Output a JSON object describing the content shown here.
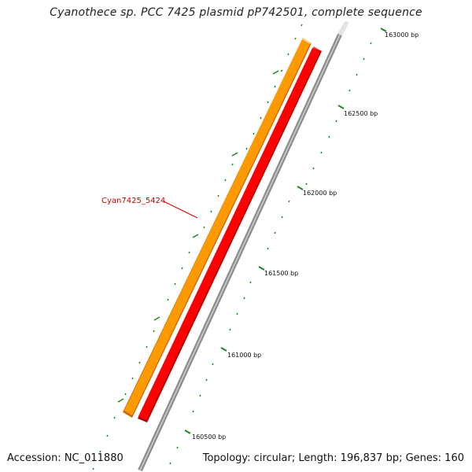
{
  "title": "Cyanothece sp. PCC 7425 plasmid pP742501, complete sequence",
  "footer": {
    "accession": "Accession: NC_011880",
    "summary": "Topology: circular; Length: 196,837 bp; Genes: 160"
  },
  "gene_label": "Cyan7425_5424",
  "ticks": [
    {
      "label": "160500 bp"
    },
    {
      "label": "161000 bp"
    },
    {
      "label": "161500 bp"
    },
    {
      "label": "162000 bp"
    },
    {
      "label": "162500 bp"
    },
    {
      "label": "163000 bp"
    }
  ],
  "colors": {
    "forward_gene": "#ff9900",
    "reverse_gene": "#ff0000",
    "backbone": "#888888",
    "tick": "#1a8a1a",
    "label_line": "#d00000"
  }
}
